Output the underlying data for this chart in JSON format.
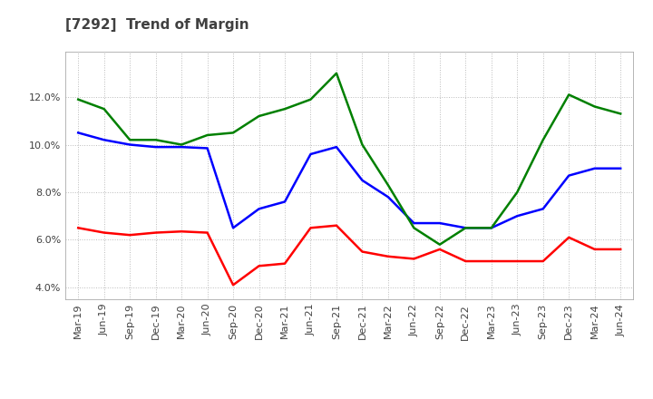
{
  "title": "[7292]  Trend of Margin",
  "x_labels": [
    "Mar-19",
    "Jun-19",
    "Sep-19",
    "Dec-19",
    "Mar-20",
    "Jun-20",
    "Sep-20",
    "Dec-20",
    "Mar-21",
    "Jun-21",
    "Sep-21",
    "Dec-21",
    "Mar-22",
    "Jun-22",
    "Sep-22",
    "Dec-22",
    "Mar-23",
    "Jun-23",
    "Sep-23",
    "Dec-23",
    "Mar-24",
    "Jun-24"
  ],
  "ordinary_income": [
    10.5,
    10.2,
    10.0,
    9.9,
    9.9,
    9.85,
    6.5,
    7.3,
    7.6,
    9.6,
    9.9,
    8.5,
    7.8,
    6.7,
    6.7,
    6.5,
    6.5,
    7.0,
    7.3,
    8.7,
    9.0,
    9.0
  ],
  "net_income": [
    6.5,
    6.3,
    6.2,
    6.3,
    6.35,
    6.3,
    4.1,
    4.9,
    5.0,
    6.5,
    6.6,
    5.5,
    5.3,
    5.2,
    5.6,
    5.1,
    5.1,
    5.1,
    5.1,
    6.1,
    5.6,
    5.6
  ],
  "operating_cashflow": [
    11.9,
    11.5,
    10.2,
    10.2,
    10.0,
    10.4,
    10.5,
    11.2,
    11.5,
    11.9,
    13.0,
    10.0,
    8.3,
    6.5,
    5.8,
    6.5,
    6.5,
    8.0,
    10.2,
    12.1,
    11.6,
    11.3
  ],
  "ylim": [
    3.5,
    13.9
  ],
  "yticks": [
    4.0,
    6.0,
    8.0,
    10.0,
    12.0
  ],
  "line_colors": {
    "ordinary_income": "#0000ff",
    "net_income": "#ff0000",
    "operating_cashflow": "#008000"
  },
  "background_color": "#ffffff",
  "grid_color": "#bbbbbb",
  "title_color": "#404040",
  "title_fontsize": 11,
  "tick_fontsize": 8,
  "line_width": 1.8
}
